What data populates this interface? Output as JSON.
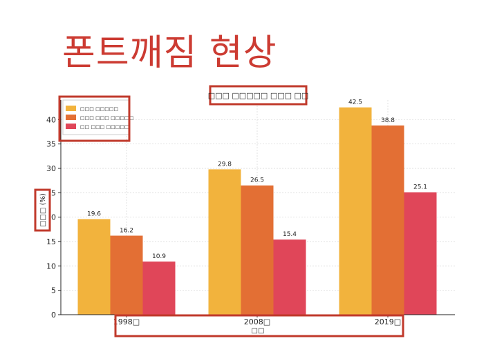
{
  "slide": {
    "title": "폰트깨짐 현상"
  },
  "chart_data": {
    "type": "bar",
    "title": "□□□ □□□□□ □□□ □□",
    "xlabel": "□□",
    "ylabel": "□□□ (%)",
    "categories": [
      "1998□",
      "2008□",
      "2019□"
    ],
    "series": [
      {
        "name": "□□□ □□□□□",
        "color": "#f2b33d",
        "values": [
          19.6,
          29.8,
          42.5
        ]
      },
      {
        "name": "□□□ □□□ □□□□□",
        "color": "#e36f34",
        "values": [
          16.2,
          26.5,
          38.8
        ]
      },
      {
        "name": "□□ □□□ □□□□□",
        "color": "#e04659",
        "values": [
          10.9,
          15.4,
          25.1
        ]
      }
    ],
    "ylim": [
      0,
      44
    ],
    "yticks": [
      0,
      5,
      10,
      15,
      20,
      25,
      30,
      35,
      40
    ],
    "grid": true,
    "legend_position": "top-left",
    "highlight_color": "#c0392b"
  }
}
